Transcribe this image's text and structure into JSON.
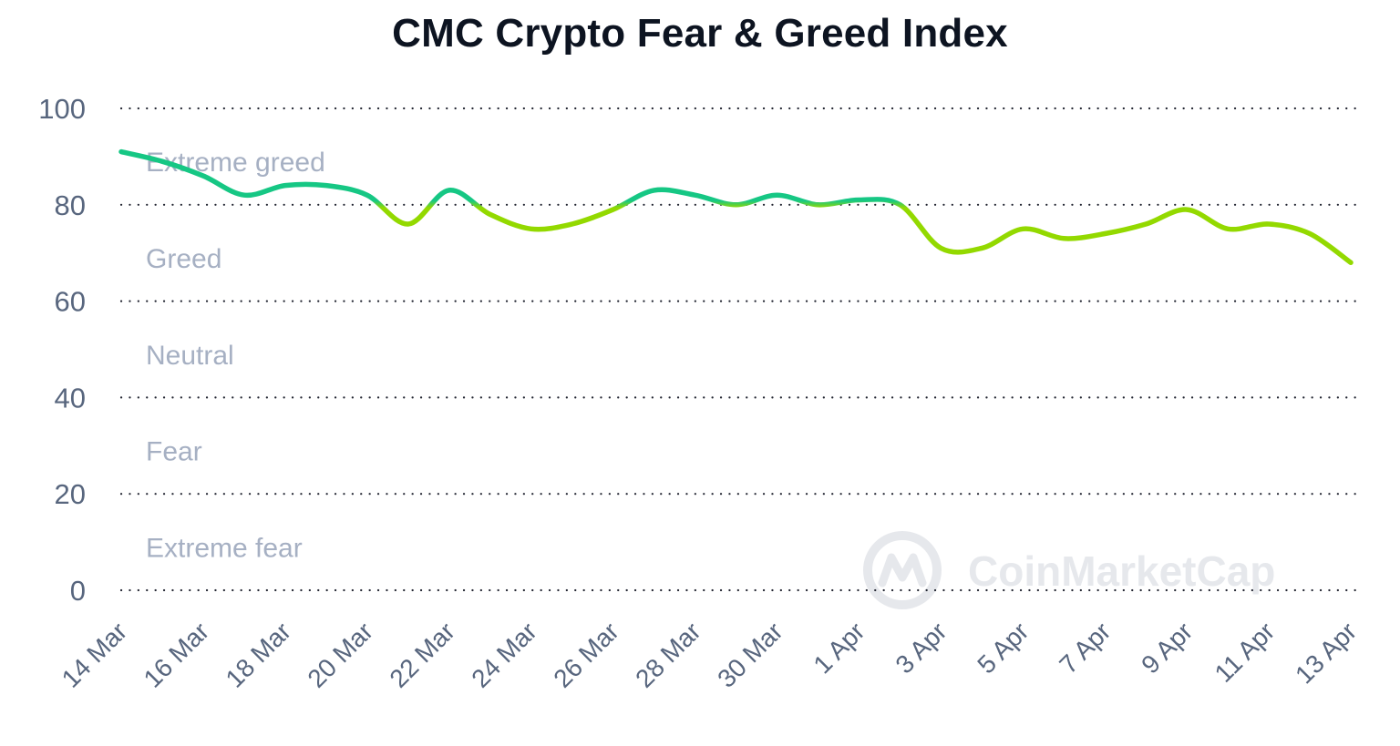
{
  "title": "CMC Crypto Fear & Greed Index",
  "watermark": "CoinMarketCap",
  "colors": {
    "greed_line": "#16c784",
    "fear_line": "#93d900",
    "grid": "#222531",
    "axis_text": "#58667e",
    "zone_text": "#a6b0c3"
  },
  "chart_data": {
    "type": "line",
    "title": "CMC Crypto Fear & Greed Index",
    "xlabel": "",
    "ylabel": "",
    "ylim": [
      0,
      100
    ],
    "yticks": [
      0,
      20,
      40,
      60,
      80,
      100
    ],
    "grid": true,
    "grid_style": "dotted",
    "x_tick_labels": [
      "14 Mar",
      "16 Mar",
      "18 Mar",
      "20 Mar",
      "22 Mar",
      "24 Mar",
      "26 Mar",
      "28 Mar",
      "30 Mar",
      "1 Apr",
      "3 Apr",
      "5 Apr",
      "7 Apr",
      "9 Apr",
      "11 Apr",
      "13 Apr"
    ],
    "zones": [
      {
        "label": "Extreme greed",
        "y": 89
      },
      {
        "label": "Greed",
        "y": 69
      },
      {
        "label": "Neutral",
        "y": 49
      },
      {
        "label": "Fear",
        "y": 29
      },
      {
        "label": "Extreme fear",
        "y": 9
      }
    ],
    "series": [
      {
        "x": [
          "14 Mar",
          "15 Mar",
          "16 Mar",
          "17 Mar",
          "18 Mar",
          "19 Mar",
          "20 Mar",
          "21 Mar",
          "22 Mar",
          "23 Mar",
          "24 Mar",
          "25 Mar",
          "26 Mar",
          "27 Mar",
          "28 Mar",
          "29 Mar",
          "30 Mar",
          "31 Mar",
          "1 Apr",
          "2 Apr",
          "3 Apr",
          "4 Apr",
          "5 Apr",
          "6 Apr",
          "7 Apr",
          "8 Apr",
          "9 Apr",
          "10 Apr",
          "11 Apr",
          "12 Apr",
          "13 Apr"
        ],
        "values": [
          91,
          89,
          86,
          82,
          84,
          84,
          82,
          76,
          83,
          78,
          75,
          76,
          79,
          83,
          82,
          80,
          82,
          80,
          81,
          80,
          71,
          71,
          75,
          73,
          74,
          76,
          79,
          75,
          76,
          74,
          68
        ]
      }
    ]
  }
}
